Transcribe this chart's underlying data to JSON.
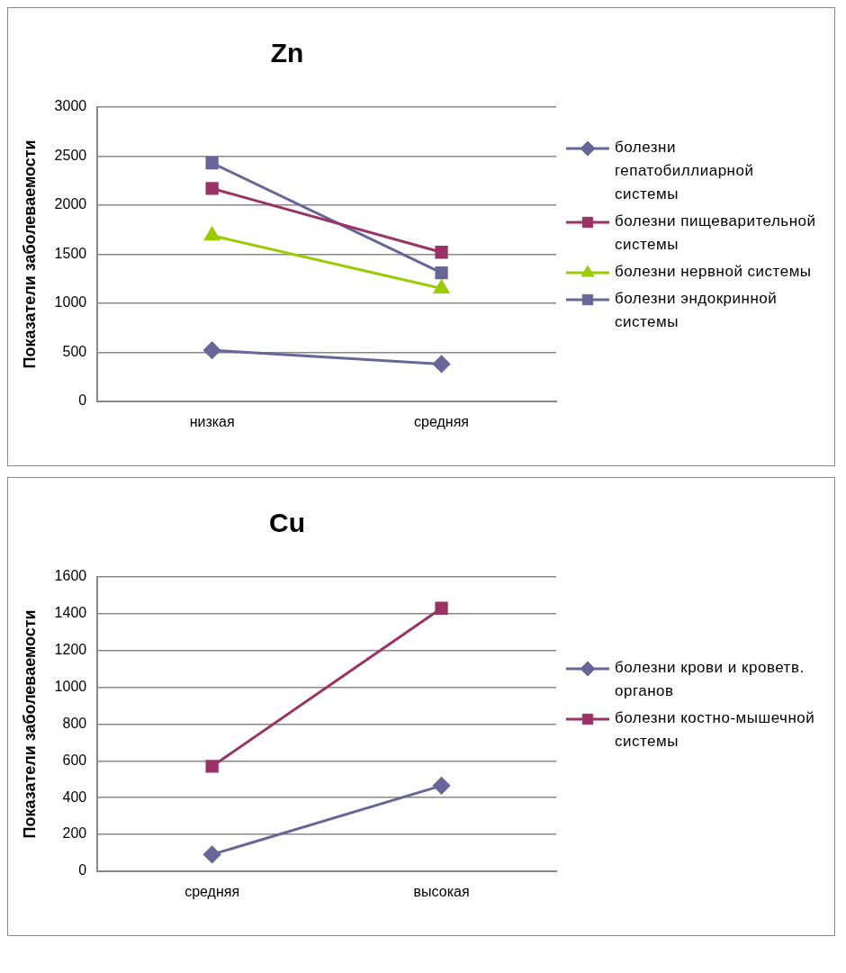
{
  "chart_data": [
    {
      "type": "line",
      "title": "Zn",
      "ylabel": "Показатели заболеваемости",
      "categories": [
        "низкая",
        "средняя"
      ],
      "ylim": [
        0,
        3000
      ],
      "yticks": [
        0,
        500,
        1000,
        1500,
        2000,
        2500,
        3000
      ],
      "grid": "y",
      "legend": "right",
      "series": [
        {
          "name": "болезни гепатобиллиарной системы",
          "color": "#666699",
          "marker": "diamond",
          "values": [
            520,
            380
          ]
        },
        {
          "name": "болезни пищеварительной системы",
          "color": "#993366",
          "marker": "square",
          "values": [
            2170,
            1520
          ]
        },
        {
          "name": "болезни нервной системы",
          "color": "#99cc00",
          "marker": "triangle",
          "values": [
            1690,
            1150
          ]
        },
        {
          "name": "болезни эндокринной системы",
          "color": "#666699",
          "marker": "square",
          "values": [
            2430,
            1310
          ]
        }
      ]
    },
    {
      "type": "line",
      "title": "Cu",
      "ylabel": "Показатели заболеваемости",
      "categories": [
        "средняя",
        "высокая"
      ],
      "ylim": [
        0,
        1600
      ],
      "yticks": [
        0,
        200,
        400,
        600,
        800,
        1000,
        1200,
        1400,
        1600
      ],
      "grid": "y",
      "legend": "right",
      "series": [
        {
          "name": "болезни крови и кроветв. органов",
          "color": "#666699",
          "marker": "diamond",
          "values": [
            90,
            465
          ]
        },
        {
          "name": "болезни костно-мышечной системы",
          "color": "#993366",
          "marker": "square",
          "values": [
            570,
            1430
          ]
        }
      ]
    }
  ]
}
